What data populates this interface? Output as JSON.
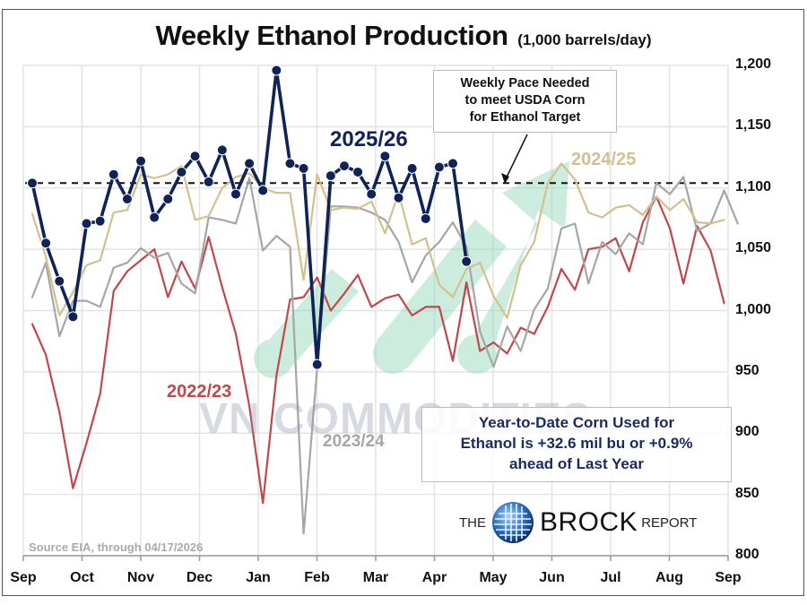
{
  "chart_data": {
    "type": "line",
    "title": "Weekly Ethanol Production",
    "subtitle": "(1,000 barrels/day)",
    "xlabel": "",
    "ylabel": "1,000 barrels/day",
    "ylim": [
      800,
      1200
    ],
    "yticks": [
      "1,200",
      "1,150",
      "1,100",
      "1,050",
      "1,000",
      "950",
      "900",
      "850",
      "800"
    ],
    "x_tick_labels": [
      "Sep",
      "Oct",
      "Nov",
      "Dec",
      "Jan",
      "Feb",
      "Mar",
      "Apr",
      "May",
      "Jun",
      "Jul",
      "Aug",
      "Sep"
    ],
    "grid": true,
    "legend_position": "inline labels",
    "reference_line": {
      "label": "Weekly Pace Needed to meet USDA Corn for Ethanol Target",
      "value": 1104,
      "style": "dashed",
      "color": "#111111"
    },
    "series": [
      {
        "name": "2022/23",
        "color": "#c0474b",
        "width": 2.2,
        "markers": false,
        "values": [
          989,
          964,
          917,
          855,
          892,
          932,
          1016,
          1032,
          1041,
          1050,
          1011,
          1040,
          1018,
          1060,
          1019,
          981,
          922,
          843,
          947,
          1009,
          1011,
          1027,
          1000,
          1014,
          1029,
          1003,
          1010,
          1013,
          996,
          1003,
          1003,
          959,
          1023,
          967,
          974,
          965,
          986,
          981,
          1003,
          1034,
          1017,
          1050,
          1052,
          1059,
          1032,
          1072,
          1093,
          1067,
          1022,
          1069,
          1049,
          1006
        ]
      },
      {
        "name": "2023/24",
        "color": "#a6a6a6",
        "width": 2.2,
        "markers": false,
        "values": [
          1011,
          1039,
          979,
          1008,
          1008,
          1003,
          1035,
          1039,
          1051,
          1043,
          1047,
          1022,
          1014,
          1076,
          1074,
          1071,
          1108,
          1049,
          1061,
          1052,
          818,
          953,
          1085,
          1085,
          1084,
          1080,
          1074,
          1056,
          1023,
          1045,
          1056,
          1072,
          1052,
          983,
          954,
          987,
          967,
          1001,
          1018,
          1067,
          1071,
          1022,
          1056,
          1046,
          1063,
          1054,
          1104,
          1095,
          1109,
          1065,
          1071,
          1098,
          1071
        ]
      },
      {
        "name": "2024/25",
        "color": "#d4bf8f",
        "width": 2.2,
        "markers": false,
        "values": [
          1079,
          1044,
          996,
          1015,
          1037,
          1041,
          1080,
          1082,
          1111,
          1108,
          1111,
          1118,
          1074,
          1077,
          1100,
          1109,
          1112,
          1100,
          1096,
          1096,
          1025,
          1111,
          1082,
          1084,
          1083,
          1089,
          1063,
          1096,
          1054,
          1059,
          1021,
          1011,
          1034,
          1039,
          1012,
          994,
          1037,
          1056,
          1104,
          1120,
          1107,
          1080,
          1076,
          1084,
          1086,
          1078,
          1093,
          1082,
          1091,
          1072,
          1071,
          1074
        ]
      },
      {
        "name": "2025/26",
        "color": "#0f2357",
        "width": 3.6,
        "markers": true,
        "values": [
          1104,
          1055,
          1024,
          995,
          1071,
          1073,
          1111,
          1091,
          1122,
          1076,
          1091,
          1113,
          1126,
          1105,
          1131,
          1095,
          1120,
          1098,
          1196,
          1120,
          1116,
          956,
          1110,
          1118,
          1113,
          1095,
          1126,
          1092,
          1116,
          1075,
          1117,
          1120,
          1040
        ]
      }
    ],
    "annotations": [
      "Weekly Pace Needed to meet USDA Corn for Ethanol Target",
      "Year-to-Date Corn Used for Ethanol is +32.6 mil bu or +0.9% ahead of Last Year",
      "Source EIA, through 04/17/2026"
    ]
  },
  "header": {
    "title": "Weekly Ethanol Production",
    "subtitle": "(1,000 barrels/day)"
  },
  "labels": {
    "s2025": "2025/26",
    "s2024": "2024/25",
    "s2023": "2023/24",
    "s2022": "2022/23"
  },
  "callout": {
    "line1": "Weekly Pace Needed",
    "line2": "to meet USDA Corn",
    "line3": "for Ethanol Target"
  },
  "ytd_box": {
    "line1": "Year-to-Date Corn Used for",
    "line2": "Ethanol is +32.6 mil bu or +0.9%",
    "line3": "ahead of Last Year"
  },
  "source": "Source EIA, through 04/17/2026",
  "watermark": "VN COMMODITIES",
  "logo": {
    "prefix": "THE",
    "brand": "BROCK",
    "suffix": "REPORT"
  },
  "colors": {
    "s2025": "#0f2357",
    "s2024": "#d4bf8f",
    "s2023": "#a6a6a6",
    "s2022": "#c0474b",
    "grid": "#e3e3e3",
    "arrow": "#8fd8b8"
  }
}
